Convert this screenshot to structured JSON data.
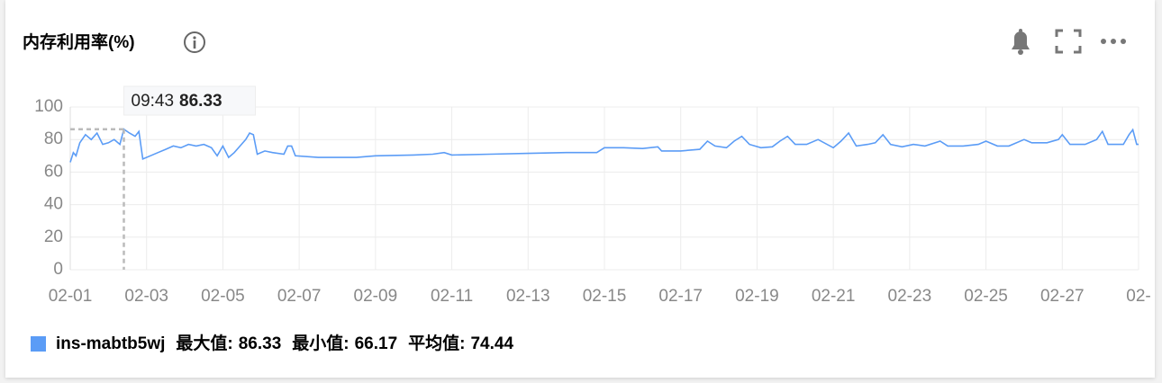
{
  "chart_data": {
    "type": "line",
    "title": "内存利用率(%)",
    "x": [
      0,
      0.08,
      0.15,
      0.25,
      0.4,
      0.55,
      0.7,
      0.85,
      1.0,
      1.15,
      1.3,
      1.405,
      1.55,
      1.7,
      1.8,
      1.9,
      2.1,
      2.3,
      2.5,
      2.7,
      2.9,
      3.1,
      3.3,
      3.5,
      3.7,
      3.85,
      4.0,
      4.15,
      4.3,
      4.45,
      4.6,
      4.7,
      4.8,
      4.9,
      5.1,
      5.3,
      5.6,
      5.7,
      5.8,
      5.9,
      6.5,
      7.5,
      8,
      9,
      9.5,
      9.8,
      10,
      11,
      12,
      13,
      13.8,
      14,
      14.5,
      15,
      15.4,
      15.5,
      16,
      16.5,
      16.7,
      16.9,
      17.2,
      17.4,
      17.6,
      17.8,
      18.1,
      18.4,
      18.6,
      18.8,
      19.0,
      19.3,
      19.6,
      20.0,
      20.2,
      20.4,
      20.6,
      20.9,
      21.1,
      21.3,
      21.5,
      21.8,
      22.1,
      22.4,
      22.8,
      23.0,
      23.4,
      23.8,
      24.0,
      24.3,
      24.6,
      25.0,
      25.2,
      25.6,
      25.9,
      26.0,
      26.2,
      26.6,
      26.9,
      27.05,
      27.2,
      27.6,
      27.75,
      27.85,
      27.95,
      28
    ],
    "series": [
      {
        "name": "ins-mabtb5wj",
        "color": "#5b9cf6",
        "values": [
          66,
          72,
          70,
          78,
          83,
          80,
          84,
          77,
          78,
          80,
          77,
          86.33,
          84,
          82,
          85,
          68,
          70,
          72,
          74,
          76,
          75,
          77,
          76,
          77,
          75,
          70,
          76,
          69,
          72,
          76,
          80,
          84,
          83,
          71,
          73,
          72,
          71,
          76,
          76,
          70,
          69,
          69,
          70,
          70.5,
          71,
          72,
          70.5,
          71,
          71.5,
          72,
          72,
          75,
          75,
          74.5,
          75.5,
          73,
          73,
          74,
          79,
          76,
          75,
          79,
          82,
          77,
          75,
          75.5,
          79,
          82,
          77,
          77,
          80,
          75,
          79,
          84,
          76,
          77,
          78,
          83,
          77,
          75.5,
          77,
          76,
          79,
          76,
          76,
          77,
          79,
          76,
          76,
          80,
          78,
          78,
          80,
          83,
          77,
          77,
          80,
          85,
          77,
          77,
          83,
          86,
          77,
          77
        ]
      }
    ],
    "xlim": [
      0,
      28
    ],
    "xticks": [
      {
        "value": 0,
        "label": "02-01"
      },
      {
        "value": 2,
        "label": "02-03"
      },
      {
        "value": 4,
        "label": "02-05"
      },
      {
        "value": 6,
        "label": "02-07"
      },
      {
        "value": 8,
        "label": "02-09"
      },
      {
        "value": 10,
        "label": "02-11"
      },
      {
        "value": 12,
        "label": "02-13"
      },
      {
        "value": 14,
        "label": "02-15"
      },
      {
        "value": 16,
        "label": "02-17"
      },
      {
        "value": 18,
        "label": "02-19"
      },
      {
        "value": 20,
        "label": "02-21"
      },
      {
        "value": 22,
        "label": "02-23"
      },
      {
        "value": 24,
        "label": "02-25"
      },
      {
        "value": 26,
        "label": "02-27"
      },
      {
        "value": 28,
        "label": "02-"
      }
    ],
    "ylim": [
      0,
      100
    ],
    "yticks": [
      0,
      20,
      40,
      60,
      80,
      100
    ],
    "grid": true,
    "tooltip": {
      "x": 1.405,
      "time": "09:43",
      "value": 86.33
    },
    "stats": [
      {
        "label": "最大值:",
        "value": 86.33
      },
      {
        "label": "最小值:",
        "value": 66.17
      },
      {
        "label": "平均值:",
        "value": 74.44
      }
    ]
  }
}
